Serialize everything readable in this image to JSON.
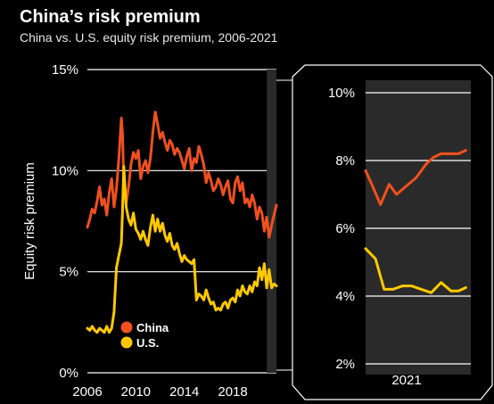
{
  "title": "China’s risk premium",
  "subtitle": "China vs. U.S. equity risk premium, 2006-2021",
  "colors": {
    "china": "#f0501e",
    "us": "#ffc800",
    "background": "#000000",
    "gridline": "#ffffff",
    "highlight": "#2a2a2a"
  },
  "chart_data": [
    {
      "type": "line",
      "ylabel": "Equity risk premium",
      "xlim": [
        2006,
        2021.6
      ],
      "ylim": [
        0,
        15
      ],
      "yticks": [
        "0%",
        "5%",
        "10%",
        "15%"
      ],
      "xticks": [
        "2006",
        "2010",
        "2014",
        "2018"
      ],
      "xtick_values": [
        2006,
        2010,
        2014,
        2018
      ],
      "highlight_range": [
        2020.8,
        2021.6
      ],
      "legend_position": "bottom-left",
      "series": [
        {
          "name": "China",
          "color": "#f0501e",
          "x": [
            2006.0,
            2006.2,
            2006.4,
            2006.6,
            2006.8,
            2007.0,
            2007.2,
            2007.4,
            2007.6,
            2007.8,
            2008.0,
            2008.2,
            2008.4,
            2008.6,
            2008.8,
            2008.9,
            2009.0,
            2009.2,
            2009.4,
            2009.6,
            2009.8,
            2010.0,
            2010.2,
            2010.4,
            2010.6,
            2010.8,
            2011.0,
            2011.2,
            2011.4,
            2011.6,
            2011.8,
            2012.0,
            2012.2,
            2012.4,
            2012.6,
            2012.8,
            2013.0,
            2013.2,
            2013.4,
            2013.6,
            2013.8,
            2014.0,
            2014.2,
            2014.4,
            2014.6,
            2014.8,
            2015.0,
            2015.2,
            2015.4,
            2015.6,
            2015.8,
            2016.0,
            2016.2,
            2016.4,
            2016.6,
            2016.8,
            2017.0,
            2017.2,
            2017.4,
            2017.6,
            2017.8,
            2018.0,
            2018.2,
            2018.4,
            2018.6,
            2018.8,
            2019.0,
            2019.2,
            2019.4,
            2019.6,
            2019.8,
            2020.0,
            2020.2,
            2020.4,
            2020.6,
            2020.8,
            2021.0,
            2021.2,
            2021.4,
            2021.6
          ],
          "values": [
            7.2,
            7.6,
            8.1,
            7.9,
            8.5,
            9.2,
            8.3,
            8.6,
            7.8,
            8.9,
            9.6,
            8.2,
            9.1,
            10.6,
            12.6,
            11.8,
            9.4,
            8.4,
            9.2,
            10.3,
            10.9,
            10.6,
            11.0,
            9.6,
            10.2,
            10.5,
            9.9,
            10.6,
            11.9,
            12.9,
            12.3,
            11.6,
            11.9,
            11.4,
            11.0,
            11.5,
            11.3,
            10.8,
            11.1,
            10.9,
            10.5,
            10.1,
            10.7,
            11.1,
            10.0,
            10.6,
            10.4,
            11.2,
            10.8,
            10.3,
            9.4,
            9.9,
            9.5,
            9.0,
            9.2,
            9.6,
            9.3,
            8.8,
            9.2,
            9.5,
            8.6,
            8.4,
            9.4,
            9.7,
            9.0,
            9.4,
            8.4,
            8.6,
            8.2,
            8.8,
            8.4,
            7.6,
            8.2,
            7.9,
            7.0,
            7.7,
            6.7,
            7.3,
            7.8,
            8.3
          ]
        },
        {
          "name": "U.S.",
          "color": "#ffc800",
          "x": [
            2006.0,
            2006.2,
            2006.4,
            2006.6,
            2006.8,
            2007.0,
            2007.2,
            2007.4,
            2007.6,
            2007.8,
            2008.0,
            2008.2,
            2008.4,
            2008.6,
            2008.8,
            2008.9,
            2009.0,
            2009.2,
            2009.4,
            2009.6,
            2009.8,
            2010.0,
            2010.2,
            2010.4,
            2010.6,
            2010.8,
            2011.0,
            2011.2,
            2011.4,
            2011.6,
            2011.8,
            2012.0,
            2012.2,
            2012.4,
            2012.6,
            2012.8,
            2013.0,
            2013.2,
            2013.4,
            2013.6,
            2013.8,
            2014.0,
            2014.2,
            2014.4,
            2014.6,
            2014.8,
            2015.0,
            2015.2,
            2015.4,
            2015.6,
            2015.8,
            2016.0,
            2016.2,
            2016.4,
            2016.6,
            2016.8,
            2017.0,
            2017.2,
            2017.4,
            2017.6,
            2017.8,
            2018.0,
            2018.2,
            2018.4,
            2018.6,
            2018.8,
            2019.0,
            2019.2,
            2019.4,
            2019.6,
            2019.8,
            2020.0,
            2020.2,
            2020.4,
            2020.6,
            2020.8,
            2021.0,
            2021.2,
            2021.4,
            2021.6
          ],
          "values": [
            2.2,
            2.1,
            2.3,
            2.1,
            2.0,
            2.2,
            2.1,
            2.0,
            2.3,
            2.0,
            2.2,
            3.0,
            5.2,
            5.8,
            6.4,
            8.0,
            10.2,
            8.2,
            7.6,
            7.3,
            7.9,
            7.1,
            6.9,
            6.6,
            7.0,
            6.6,
            6.3,
            7.2,
            7.8,
            7.0,
            7.6,
            7.0,
            7.4,
            6.8,
            6.5,
            6.9,
            6.3,
            6.1,
            6.4,
            5.9,
            5.5,
            5.8,
            5.6,
            5.5,
            5.4,
            5.6,
            3.6,
            3.9,
            3.8,
            3.6,
            4.1,
            3.7,
            3.4,
            3.5,
            3.1,
            3.2,
            3.1,
            3.4,
            3.5,
            3.2,
            3.6,
            3.7,
            3.5,
            4.1,
            3.8,
            4.3,
            4.0,
            3.9,
            4.3,
            4.0,
            4.5,
            4.3,
            5.2,
            4.6,
            5.4,
            4.2,
            5.1,
            4.2,
            4.4,
            4.3
          ]
        }
      ]
    },
    {
      "type": "line",
      "ylim": [
        2,
        10
      ],
      "yticks": [
        "2%",
        "4%",
        "6%",
        "8%",
        "10%"
      ],
      "xticks": [
        "2021"
      ],
      "xtick_values": [
        2021.0
      ],
      "xlim": [
        2020.75,
        2021.6
      ],
      "series": [
        {
          "name": "China",
          "color": "#f0501e",
          "x": [
            2020.75,
            2020.8,
            2020.87,
            2020.94,
            2021.0,
            2021.08,
            2021.16,
            2021.24,
            2021.3,
            2021.36,
            2021.44,
            2021.5,
            2021.56
          ],
          "values": [
            7.7,
            7.3,
            6.7,
            7.3,
            7.0,
            7.25,
            7.5,
            7.9,
            8.1,
            8.2,
            8.2,
            8.2,
            8.3
          ]
        },
        {
          "name": "U.S.",
          "color": "#ffc800",
          "x": [
            2020.75,
            2020.83,
            2020.9,
            2020.97,
            2021.05,
            2021.12,
            2021.2,
            2021.28,
            2021.36,
            2021.44,
            2021.5,
            2021.56
          ],
          "values": [
            5.4,
            5.1,
            4.2,
            4.2,
            4.3,
            4.3,
            4.2,
            4.1,
            4.4,
            4.15,
            4.15,
            4.25
          ]
        }
      ]
    }
  ]
}
